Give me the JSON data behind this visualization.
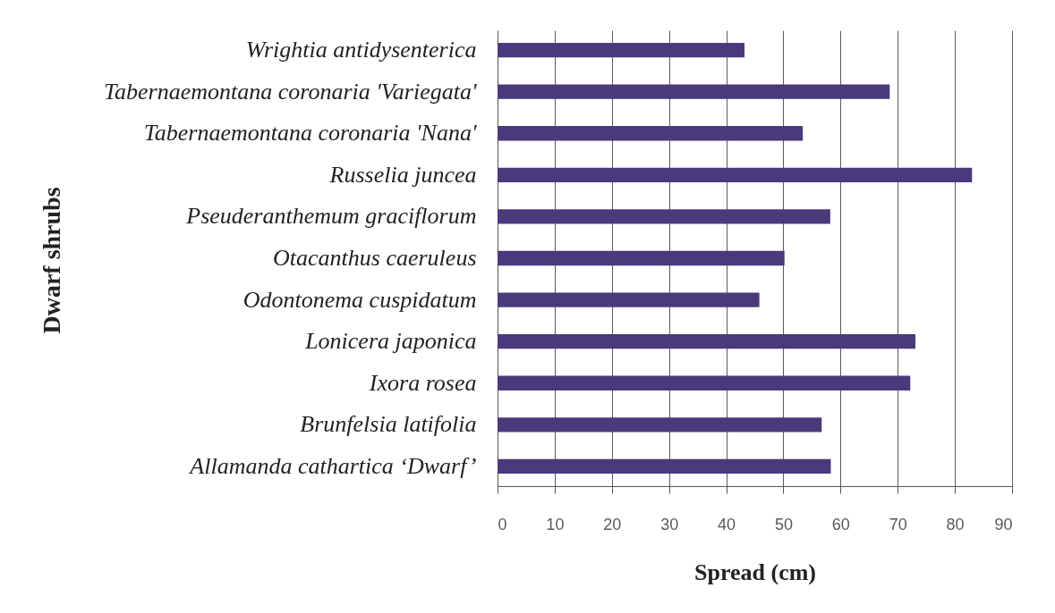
{
  "chart_data": {
    "type": "bar",
    "orientation": "horizontal",
    "categories": [
      "Wrightia antidysenterica",
      "Tabernaemontana coronaria 'Variegata'",
      "Tabernaemontana coronaria 'Nana'",
      "Russelia juncea",
      "Pseuderanthemum graciflorum",
      "Otacanthus caeruleus",
      "Odontonema cuspidatum",
      "Lonicera japonica",
      "Ixora rosea",
      "Brunfelsia latifolia",
      "Allamanda cathartica ‘Dwarf’"
    ],
    "values": [
      43.2,
      68.6,
      53.4,
      83.0,
      58.2,
      50.2,
      45.8,
      73.1,
      72.2,
      56.7,
      58.3
    ],
    "color": "#4a3a7c",
    "xlabel": "Spread (cm)",
    "ylabel": "Dwarf shrubs",
    "xlim": [
      0,
      90
    ],
    "xticks": [
      0,
      10,
      20,
      30,
      40,
      50,
      60,
      70,
      80,
      90
    ],
    "grid": "x"
  }
}
